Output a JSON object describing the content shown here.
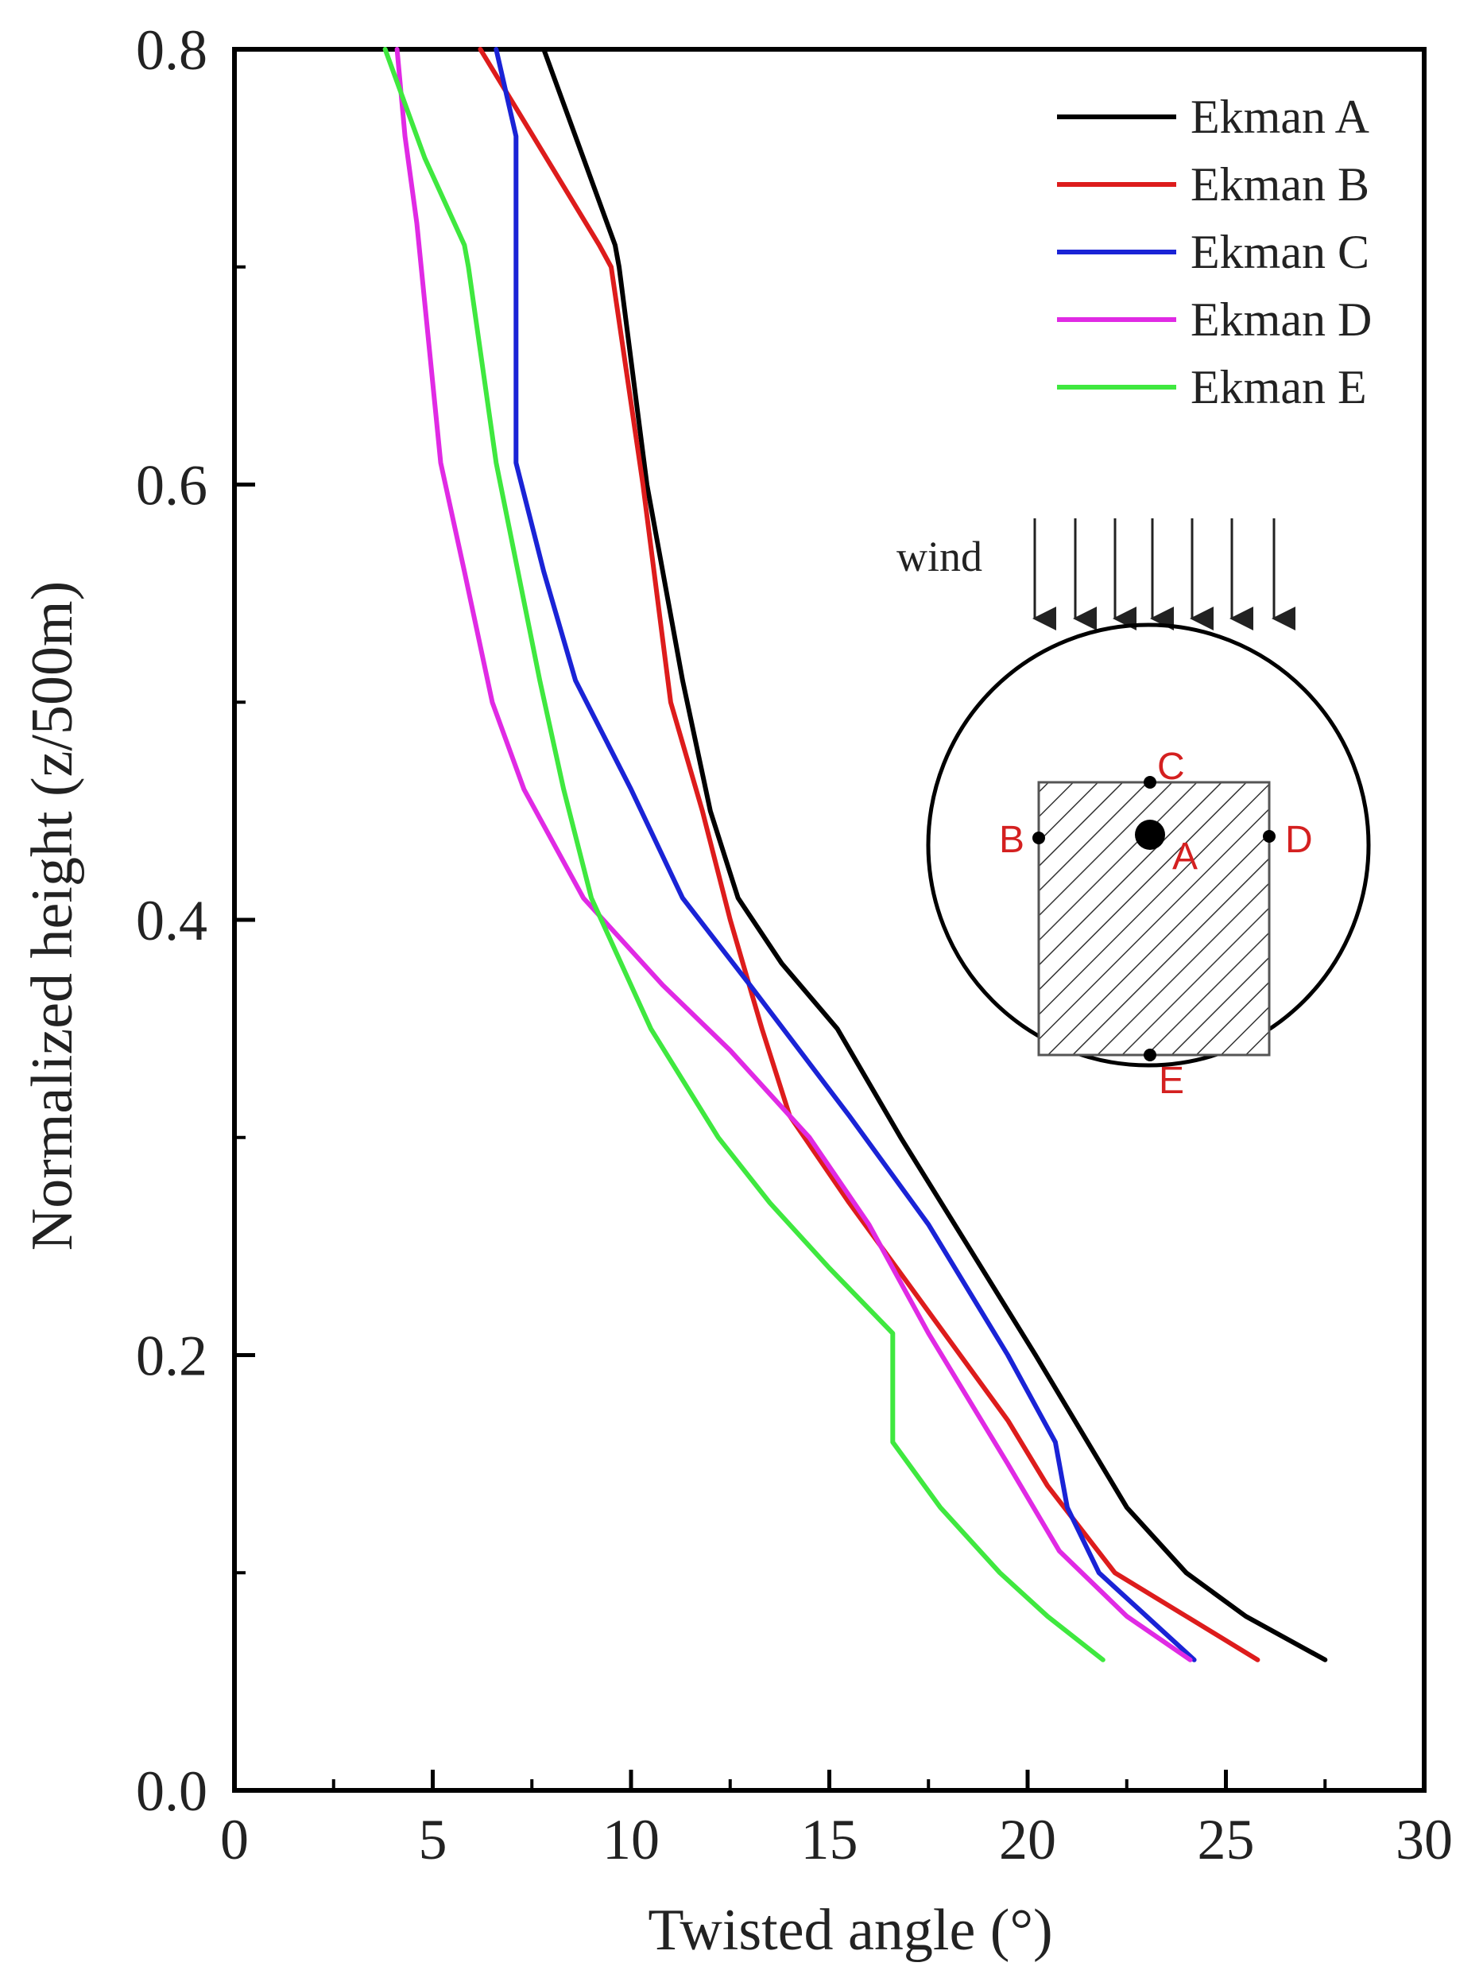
{
  "chart_data": {
    "type": "line",
    "title": "",
    "xlabel": "Twisted angle (°)",
    "ylabel": "Normalized height (z/500m)",
    "xlim": [
      0,
      30
    ],
    "ylim": [
      0,
      0.8
    ],
    "xticks": [
      0,
      5,
      10,
      15,
      20,
      25,
      30
    ],
    "yticks": [
      0.0,
      0.2,
      0.4,
      0.6,
      0.8
    ],
    "xtick_labels": [
      "0",
      "5",
      "10",
      "15",
      "20",
      "25",
      "30"
    ],
    "ytick_labels": [
      "0.0",
      "0.2",
      "0.4",
      "0.6",
      "0.8"
    ],
    "legend_position": "top-right",
    "grid": false,
    "series": [
      {
        "name": "Ekman A",
        "color": "#000000",
        "points": [
          [
            27.5,
            0.06
          ],
          [
            25.5,
            0.08
          ],
          [
            24,
            0.1
          ],
          [
            22.5,
            0.13
          ],
          [
            20.2,
            0.2
          ],
          [
            18.5,
            0.25
          ],
          [
            16.8,
            0.3
          ],
          [
            15.2,
            0.35
          ],
          [
            13.8,
            0.38
          ],
          [
            12.7,
            0.41
          ],
          [
            12,
            0.45
          ],
          [
            11.3,
            0.51
          ],
          [
            10.4,
            0.6
          ],
          [
            9.7,
            0.7
          ],
          [
            9.6,
            0.71
          ],
          [
            7.8,
            0.8
          ]
        ]
      },
      {
        "name": "Ekman B",
        "color": "#dd1c1c",
        "points": [
          [
            25.8,
            0.06
          ],
          [
            24,
            0.08
          ],
          [
            22.2,
            0.1
          ],
          [
            20.5,
            0.14
          ],
          [
            19.5,
            0.17
          ],
          [
            17.5,
            0.22
          ],
          [
            15.5,
            0.27
          ],
          [
            14,
            0.31
          ],
          [
            13.3,
            0.35
          ],
          [
            12.5,
            0.4
          ],
          [
            11.8,
            0.45
          ],
          [
            11,
            0.5
          ],
          [
            10.3,
            0.6
          ],
          [
            9.5,
            0.7
          ],
          [
            9.2,
            0.71
          ],
          [
            6.2,
            0.8
          ]
        ]
      },
      {
        "name": "Ekman C",
        "color": "#1a23d6",
        "points": [
          [
            24.2,
            0.06
          ],
          [
            23,
            0.08
          ],
          [
            21.8,
            0.1
          ],
          [
            21,
            0.13
          ],
          [
            20.7,
            0.16
          ],
          [
            19.5,
            0.2
          ],
          [
            17.5,
            0.26
          ],
          [
            15.5,
            0.31
          ],
          [
            13,
            0.37
          ],
          [
            11.3,
            0.41
          ],
          [
            10,
            0.46
          ],
          [
            8.6,
            0.51
          ],
          [
            7.8,
            0.56
          ],
          [
            7.1,
            0.61
          ],
          [
            7.1,
            0.76
          ],
          [
            6.6,
            0.8
          ]
        ]
      },
      {
        "name": "Ekman D",
        "color": "#e02ae4",
        "points": [
          [
            24.1,
            0.06
          ],
          [
            22.5,
            0.08
          ],
          [
            20.8,
            0.11
          ],
          [
            19.5,
            0.15
          ],
          [
            17.5,
            0.21
          ],
          [
            16,
            0.26
          ],
          [
            14.5,
            0.3
          ],
          [
            12.5,
            0.34
          ],
          [
            10.8,
            0.37
          ],
          [
            8.8,
            0.41
          ],
          [
            7.3,
            0.46
          ],
          [
            6.5,
            0.5
          ],
          [
            5.8,
            0.56
          ],
          [
            5.2,
            0.61
          ],
          [
            4.6,
            0.72
          ],
          [
            4.3,
            0.76
          ],
          [
            4.1,
            0.8
          ]
        ]
      },
      {
        "name": "Ekman E",
        "color": "#3fe83f",
        "points": [
          [
            21.9,
            0.06
          ],
          [
            20.5,
            0.08
          ],
          [
            19.3,
            0.1
          ],
          [
            17.8,
            0.13
          ],
          [
            16.6,
            0.16
          ],
          [
            16.6,
            0.19
          ],
          [
            16.6,
            0.21
          ],
          [
            15,
            0.24
          ],
          [
            13.5,
            0.27
          ],
          [
            12.2,
            0.3
          ],
          [
            10.5,
            0.35
          ],
          [
            9,
            0.41
          ],
          [
            8.3,
            0.46
          ],
          [
            7.7,
            0.51
          ],
          [
            6.6,
            0.61
          ],
          [
            5.9,
            0.7
          ],
          [
            5.8,
            0.71
          ],
          [
            4.8,
            0.75
          ],
          [
            3.8,
            0.8
          ]
        ]
      }
    ],
    "inset": {
      "wind_label": "wind",
      "point_labels": [
        "A",
        "B",
        "C",
        "D",
        "E"
      ]
    }
  }
}
